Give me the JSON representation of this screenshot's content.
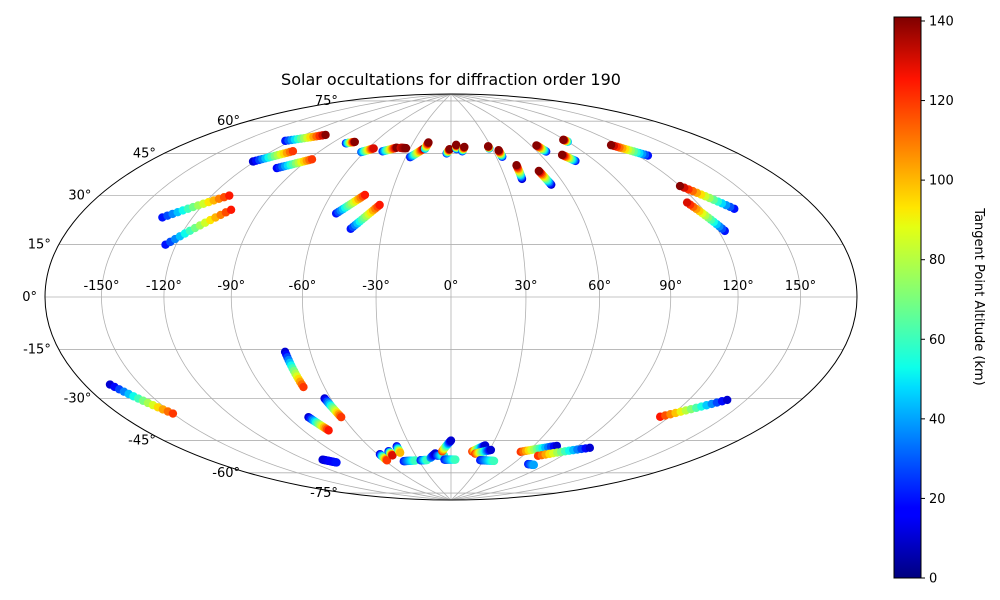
{
  "chart_data": {
    "type": "scatter",
    "projection": "hammer",
    "title": "Solar occultations for diffraction order 190",
    "grid": true,
    "x_tick_labels": [
      "-150°",
      "-120°",
      "-90°",
      "-60°",
      "-30°",
      "0°",
      "30°",
      "60°",
      "90°",
      "120°",
      "150°"
    ],
    "x_ticks": [
      -150,
      -120,
      -90,
      -60,
      -30,
      0,
      30,
      60,
      90,
      120,
      150
    ],
    "y_tick_labels": [
      "-75°",
      "-60°",
      "-45°",
      "-30°",
      "-15°",
      "0°",
      "15°",
      "30°",
      "45°",
      "60°",
      "75°"
    ],
    "y_ticks": [
      -75,
      -60,
      -45,
      -30,
      -15,
      0,
      15,
      30,
      45,
      60,
      75
    ],
    "xlim": [
      -180,
      180
    ],
    "ylim": [
      -90,
      90
    ],
    "colorbar": {
      "label": "Tangent Point Altitude (km)",
      "colormap": "jet",
      "range": [
        0,
        141
      ],
      "tick_values": [
        0,
        20,
        40,
        60,
        80,
        100,
        120,
        140
      ],
      "tick_labels": [
        "0",
        "20",
        "40",
        "60",
        "80",
        "100",
        "120",
        "140"
      ]
    },
    "tracks": [
      {
        "lon0": -124,
        "lat0": 59,
        "lon1": -105,
        "lat1": 64,
        "a0": 20,
        "a1": 140
      },
      {
        "lon0": -121,
        "lat0": 50,
        "lon1": -107,
        "lat1": 56,
        "a0": 10,
        "a1": 120
      },
      {
        "lon0": -102,
        "lat0": 49,
        "lon1": -88,
        "lat1": 54,
        "a0": 15,
        "a1": 120
      },
      {
        "lon0": -135,
        "lat0": 27,
        "lon1": -111,
        "lat1": 37,
        "a0": 20,
        "a1": 125
      },
      {
        "lon0": -125,
        "lat0": 18,
        "lon1": -104,
        "lat1": 32,
        "a0": 20,
        "a1": 125
      },
      {
        "lon0": -80,
        "lat0": 62,
        "lon1": -75,
        "lat1": 63,
        "a0": 20,
        "a1": 140
      },
      {
        "lon0": -62,
        "lat0": 59,
        "lon1": -56,
        "lat1": 61,
        "a0": 30,
        "a1": 130
      },
      {
        "lon0": -48,
        "lat0": 60,
        "lon1": -40,
        "lat1": 62,
        "a0": 25,
        "a1": 140
      },
      {
        "lon0": -37,
        "lat0": 62,
        "lon1": -33,
        "lat1": 62,
        "a0": 130,
        "a1": 140
      },
      {
        "lon0": -27,
        "lat0": 58,
        "lon1": -20,
        "lat1": 62,
        "a0": 20,
        "a1": 135
      },
      {
        "lon0": -19,
        "lat0": 62,
        "lon1": -18,
        "lat1": 65,
        "a0": 40,
        "a1": 140
      },
      {
        "lon0": -3,
        "lat0": 60,
        "lon1": -1,
        "lat1": 62,
        "a0": 20,
        "a1": 140
      },
      {
        "lon0": 4,
        "lat0": 62,
        "lon1": 4,
        "lat1": 64,
        "a0": 20,
        "a1": 140
      },
      {
        "lon0": 8,
        "lat0": 61,
        "lon1": 10,
        "lat1": 63,
        "a0": 20,
        "a1": 140
      },
      {
        "lon0": 28,
        "lat0": 62,
        "lon1": 28,
        "lat1": 63,
        "a0": 30,
        "a1": 140
      },
      {
        "lon0": 34,
        "lat0": 58,
        "lon1": 34,
        "lat1": 61,
        "a0": 20,
        "a1": 140
      },
      {
        "lon0": 39,
        "lat0": 48,
        "lon1": 40,
        "lat1": 54,
        "a0": 10,
        "a1": 140
      },
      {
        "lon0": 53,
        "lat0": 45,
        "lon1": 51,
        "lat1": 51,
        "a0": 10,
        "a1": 140
      },
      {
        "lon0": 66,
        "lat0": 59,
        "lon1": 64,
        "lat1": 62,
        "a0": 20,
        "a1": 140
      },
      {
        "lon0": 78,
        "lat0": 54,
        "lon1": 74,
        "lat1": 57,
        "a0": 20,
        "a1": 140
      },
      {
        "lon0": 90,
        "lat0": 62,
        "lon1": 89,
        "lat1": 63,
        "a0": 40,
        "a1": 140
      },
      {
        "lon0": 126,
        "lat0": 52,
        "lon1": 115,
        "lat1": 58,
        "a0": 20,
        "a1": 140
      },
      {
        "lon0": 136,
        "lat0": 30,
        "lon1": 120,
        "lat1": 40,
        "a0": 20,
        "a1": 140
      },
      {
        "lon0": 123,
        "lat0": 23,
        "lon1": 115,
        "lat1": 34,
        "a0": 20,
        "a1": 130
      },
      {
        "lon0": -53,
        "lat0": 33,
        "lon1": -43,
        "lat1": 41,
        "a0": 20,
        "a1": 125
      },
      {
        "lon0": -44,
        "lat0": 27,
        "lon1": -34,
        "lat1": 37,
        "a0": 20,
        "a1": 125
      },
      {
        "lon0": -166,
        "lat0": -27,
        "lon1": -150,
        "lat1": -39,
        "a0": 10,
        "a1": 120
      },
      {
        "lon0": -71,
        "lat0": -21,
        "lon1": -70,
        "lat1": -35,
        "a0": 10,
        "a1": 120
      },
      {
        "lon0": -63,
        "lat0": -40,
        "lon1": -61,
        "lat1": -48,
        "a0": 10,
        "a1": 120
      },
      {
        "lon0": -79,
        "lat0": -47,
        "lon1": -75,
        "lat1": -53,
        "a0": 10,
        "a1": 125
      },
      {
        "lon0": -108,
        "lat0": -64,
        "lon1": -102,
        "lat1": -66,
        "a0": 10,
        "a1": 20
      },
      {
        "lon0": -58,
        "lat0": -65,
        "lon1": -58,
        "lat1": -68,
        "a0": 10,
        "a1": 120
      },
      {
        "lon0": -49,
        "lat0": -64,
        "lon1": -49,
        "lat1": -66,
        "a0": 10,
        "a1": 130
      },
      {
        "lon0": -40,
        "lat0": -62,
        "lon1": -41,
        "lat1": -65,
        "a0": 10,
        "a1": 100
      },
      {
        "lon0": -44,
        "lat0": -69,
        "lon1": -33,
        "lat1": -69,
        "a0": 20,
        "a1": 60
      },
      {
        "lon0": -28,
        "lat0": -69,
        "lon1": -22,
        "lat1": -69,
        "a0": 20,
        "a1": 60
      },
      {
        "lon0": -18,
        "lat0": -68,
        "lon1": -13,
        "lat1": -66,
        "a0": 40,
        "a1": 10
      },
      {
        "lon0": -12,
        "lat0": -67,
        "lon1": -6,
        "lat1": -67,
        "a0": 20,
        "a1": 60
      },
      {
        "lon0": -7,
        "lat0": -65,
        "lon1": 0,
        "lat1": -60,
        "a0": 120,
        "a1": 10
      },
      {
        "lon0": -6,
        "lat0": -69,
        "lon1": 4,
        "lat1": -69,
        "a0": 20,
        "a1": 60
      },
      {
        "lon0": 17,
        "lat0": -65,
        "lon1": 25,
        "lat1": -62,
        "a0": 120,
        "a1": 10
      },
      {
        "lon0": 20,
        "lat0": -66,
        "lon1": 31,
        "lat1": -64,
        "a0": 120,
        "a1": 10
      },
      {
        "lon0": 27,
        "lat0": -69,
        "lon1": 40,
        "lat1": -69,
        "a0": 20,
        "a1": 60
      },
      {
        "lon0": 55,
        "lat0": -64,
        "lon1": 76,
        "lat1": -60,
        "a0": 120,
        "a1": 10
      },
      {
        "lon0": 72,
        "lat0": -65,
        "lon1": 100,
        "lat1": -59,
        "a0": 120,
        "a1": 10
      },
      {
        "lon0": 74,
        "lat0": -69,
        "lon1": 80,
        "lat1": -69,
        "a0": 20,
        "a1": 40
      },
      {
        "lon0": 115,
        "lat0": -44,
        "lon1": 140,
        "lat1": -35,
        "a0": 125,
        "a1": 10
      }
    ]
  }
}
